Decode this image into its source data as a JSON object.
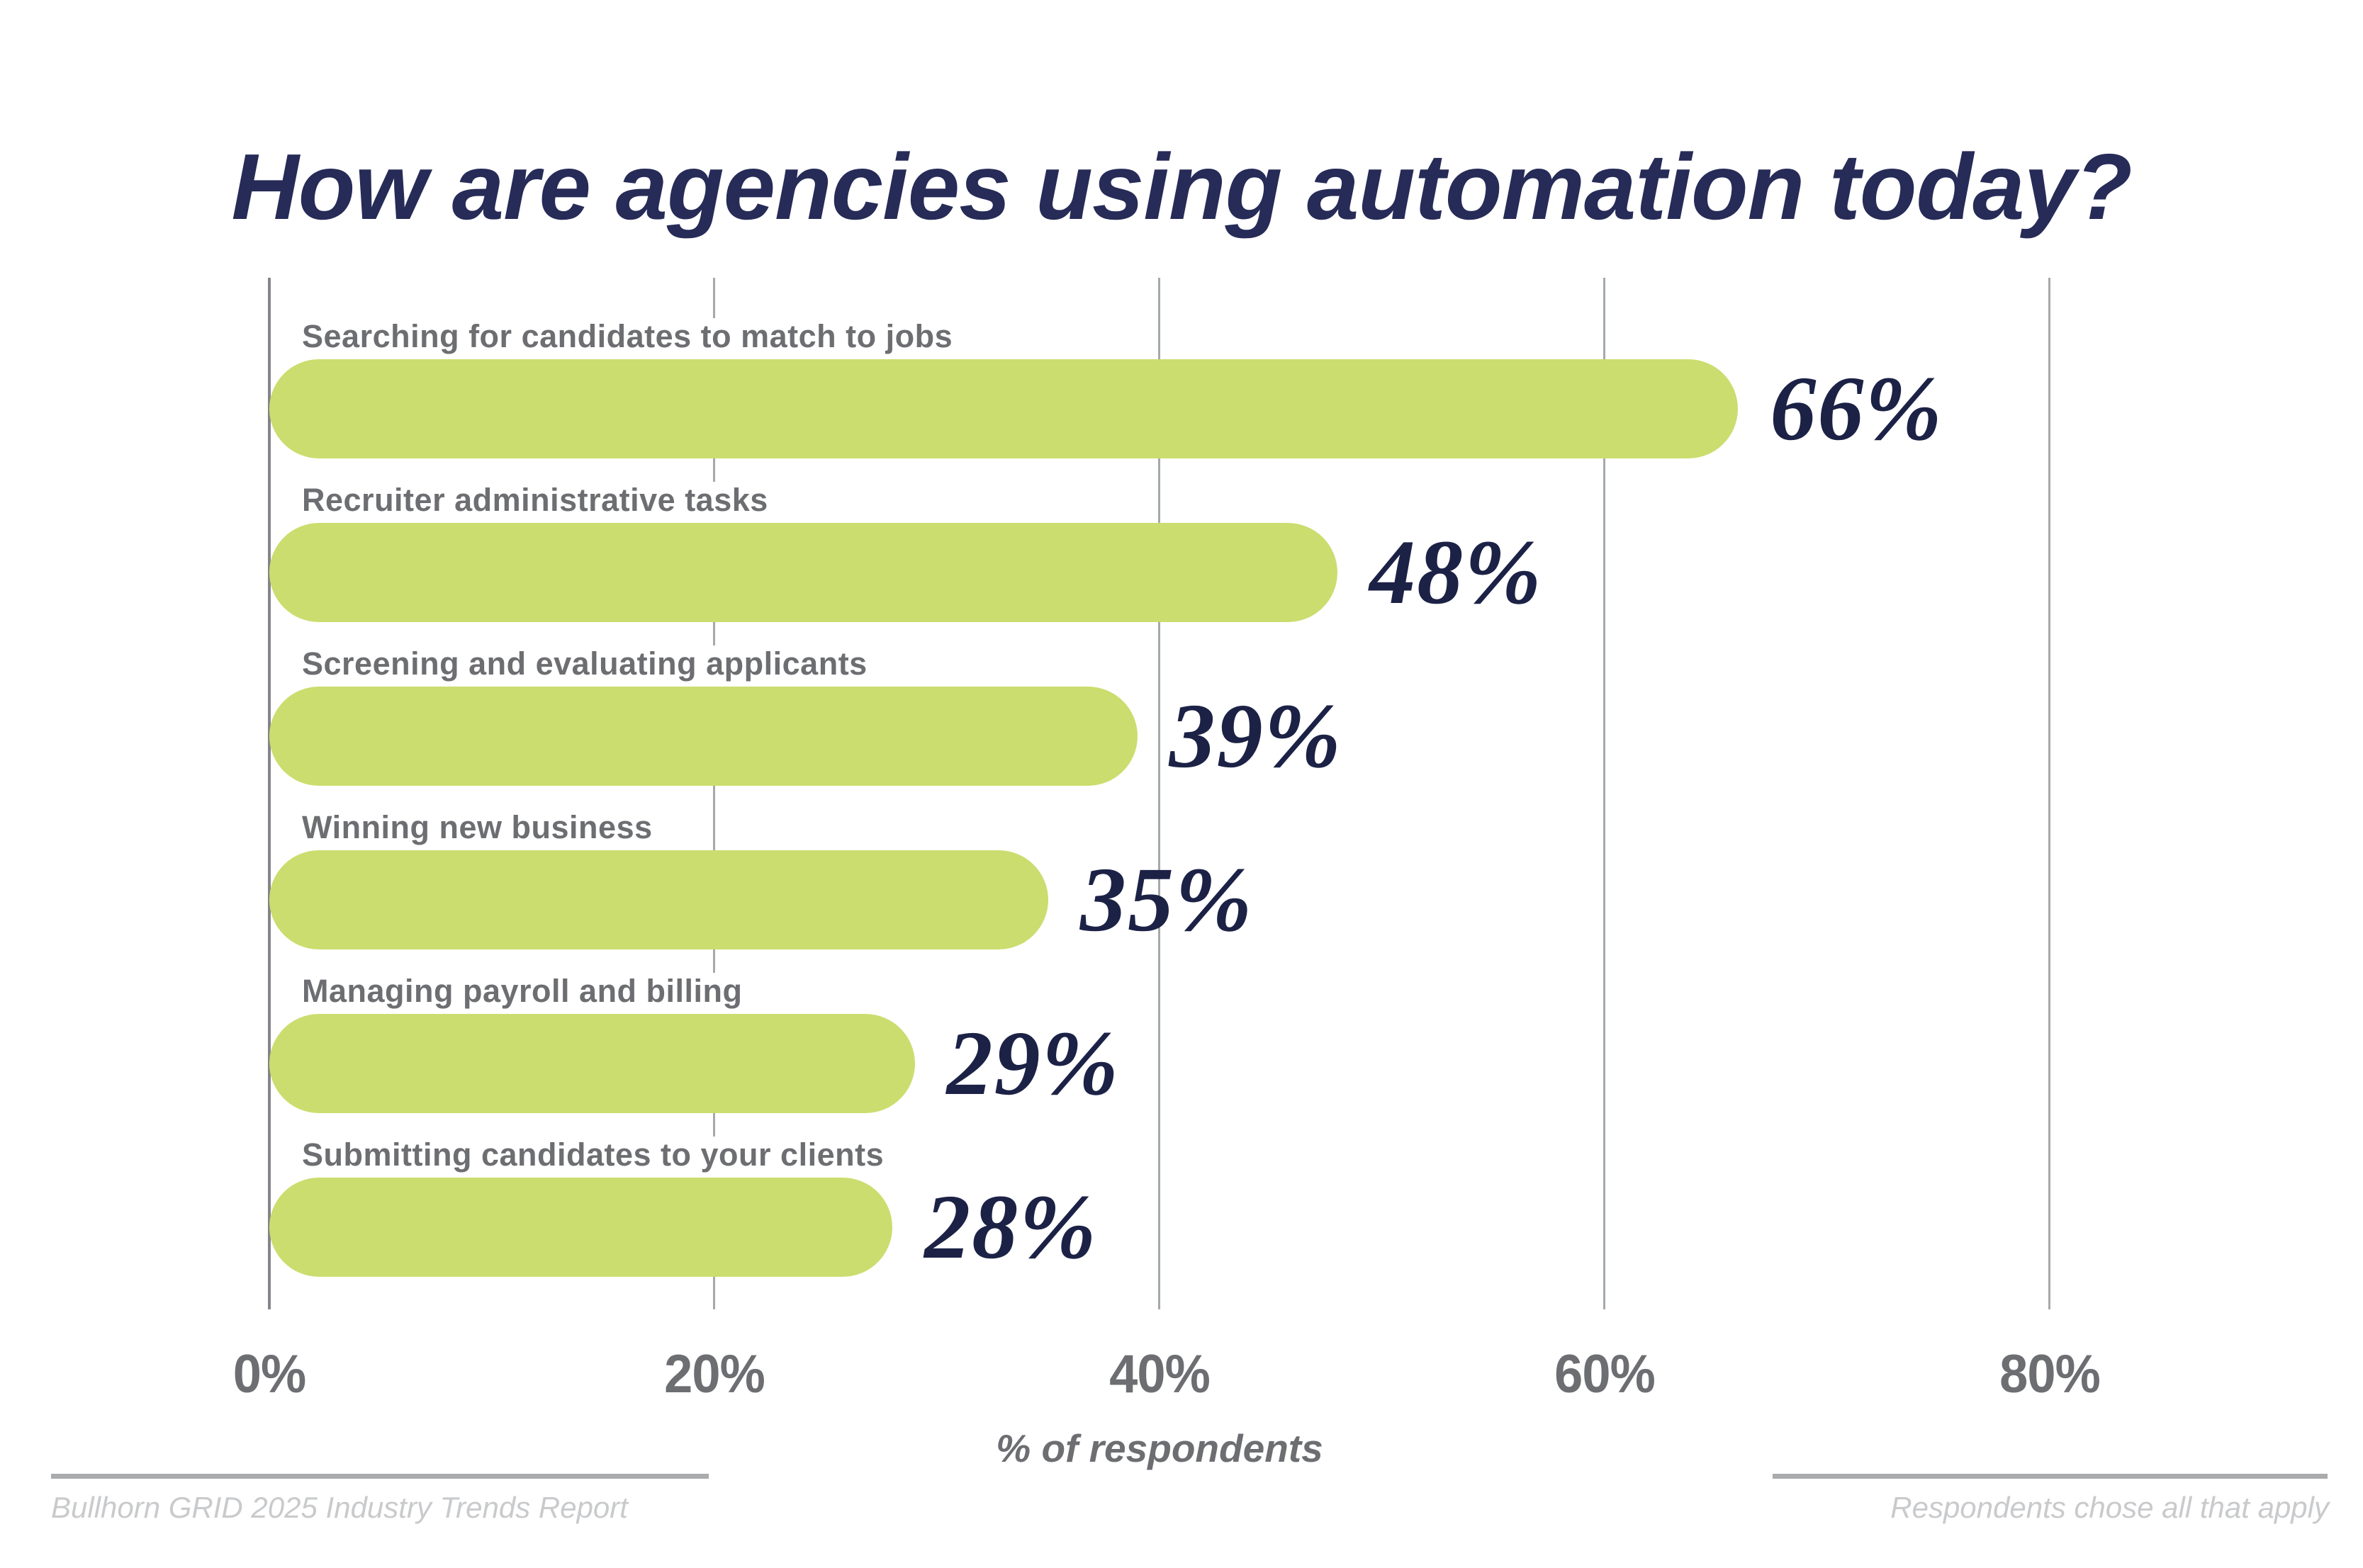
{
  "title": "How are agencies using automation today?",
  "chart_data": {
    "type": "bar",
    "orientation": "horizontal",
    "title": "How are agencies using automation today?",
    "categories": [
      "Searching for candidates to match to jobs",
      "Recruiter administrative tasks",
      "Screening and evaluating applicants",
      "Winning new business",
      "Managing payroll and billing",
      "Submitting candidates to your clients"
    ],
    "values": [
      66,
      48,
      39,
      35,
      29,
      28
    ],
    "value_labels": [
      "66%",
      "48%",
      "39%",
      "35%",
      "29%",
      "28%"
    ],
    "xlabel": "% of respondents",
    "ylabel": "",
    "x_ticks": [
      "0%",
      "20%",
      "40%",
      "60%",
      "80%"
    ],
    "x_tick_values": [
      0,
      20,
      40,
      60,
      80
    ],
    "xlim": [
      0,
      80
    ],
    "grid": "vertical",
    "legend": "none",
    "bar_color": "#cbdd6e",
    "value_label_color": "#1c2246",
    "category_label_color": "#6d6e71",
    "gridline_color": "#a6a9ac"
  },
  "colors": {
    "title_navy": "#262b57",
    "bar_green": "#cbdd6e",
    "label_gray": "#6d6e71",
    "footer_gray": "#c9cacc",
    "rule_gray": "#a9abac",
    "background": "#ffffff"
  },
  "footer": {
    "left": "Bullhorn GRID 2025 Industry Trends Report",
    "right": "Respondents chose all that apply"
  }
}
